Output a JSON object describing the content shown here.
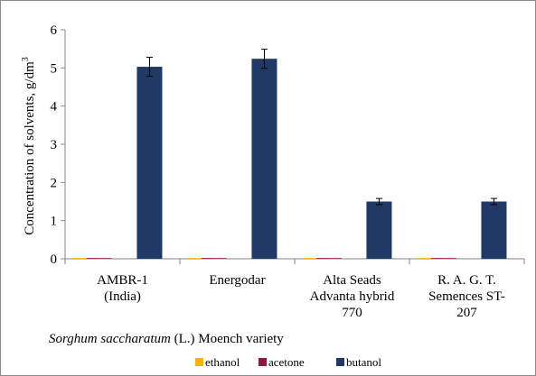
{
  "chart_data": {
    "type": "bar",
    "title": "",
    "ylabel_main": "Concentration of solvents, g/dm",
    "ylabel_sup": "3",
    "xlabel_italic": "Sorghum saccharatum",
    "xlabel_rest": " (L.) Moench variety",
    "ylim": [
      0,
      6
    ],
    "yticks": [
      "0",
      "1",
      "2",
      "3",
      "4",
      "5",
      "6"
    ],
    "grid": false,
    "legend_position": "bottom",
    "categories": [
      [
        "AMBR-1",
        "(India)"
      ],
      [
        "Energodar"
      ],
      [
        "Alta Seads",
        "Advanta hybrid",
        "770"
      ],
      [
        "R. A. G. T.",
        "Semences ST-",
        "207"
      ]
    ],
    "series": [
      {
        "name": "ethanol",
        "color": "#f2b705",
        "values": [
          0.02,
          0.02,
          0.02,
          0.02
        ],
        "errors": [
          0,
          0,
          0,
          0
        ]
      },
      {
        "name": "acetone",
        "color": "#8b1a3a",
        "values": [
          0.01,
          0.01,
          0.01,
          0.01
        ],
        "errors": [
          0,
          0,
          0,
          0
        ]
      },
      {
        "name": "butanol",
        "color": "#1f3864",
        "values": [
          5.03,
          5.24,
          1.5,
          1.5
        ],
        "errors": [
          0.25,
          0.25,
          0.08,
          0.08
        ]
      }
    ]
  }
}
